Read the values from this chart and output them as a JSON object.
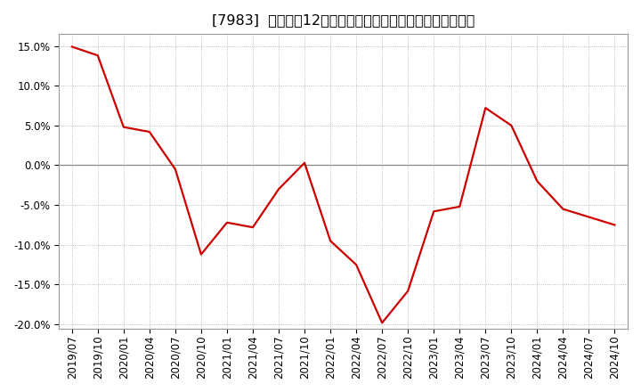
{
  "title": "[7983]  売上高の12か月移動合計の対前年同期増減率の推移",
  "x_labels": [
    "2019/07",
    "2019/10",
    "2020/01",
    "2020/04",
    "2020/07",
    "2020/10",
    "2021/01",
    "2021/04",
    "2021/07",
    "2021/10",
    "2022/01",
    "2022/04",
    "2022/07",
    "2022/10",
    "2023/01",
    "2023/04",
    "2023/07",
    "2023/10",
    "2024/01",
    "2024/04",
    "2024/07",
    "2024/10"
  ],
  "values": [
    14.9,
    13.8,
    4.8,
    4.2,
    -0.5,
    -11.2,
    -7.2,
    -7.8,
    -3.0,
    0.3,
    -9.5,
    -12.5,
    -19.8,
    -15.8,
    -5.8,
    -5.2,
    7.2,
    5.0,
    -2.0,
    -5.5,
    -6.5,
    -7.5
  ],
  "line_color": "#cc0000",
  "bg_color": "#ffffff",
  "plot_bg_color": "#ffffff",
  "grid_color": "#aaaaaa",
  "ylim_min": -20.5,
  "ylim_max": 16.5,
  "yticks": [
    -20.0,
    -15.0,
    -10.0,
    -5.0,
    0.0,
    5.0,
    10.0,
    15.0
  ],
  "title_fontsize": 11.5,
  "tick_fontsize": 8.5,
  "line_width": 1.6
}
